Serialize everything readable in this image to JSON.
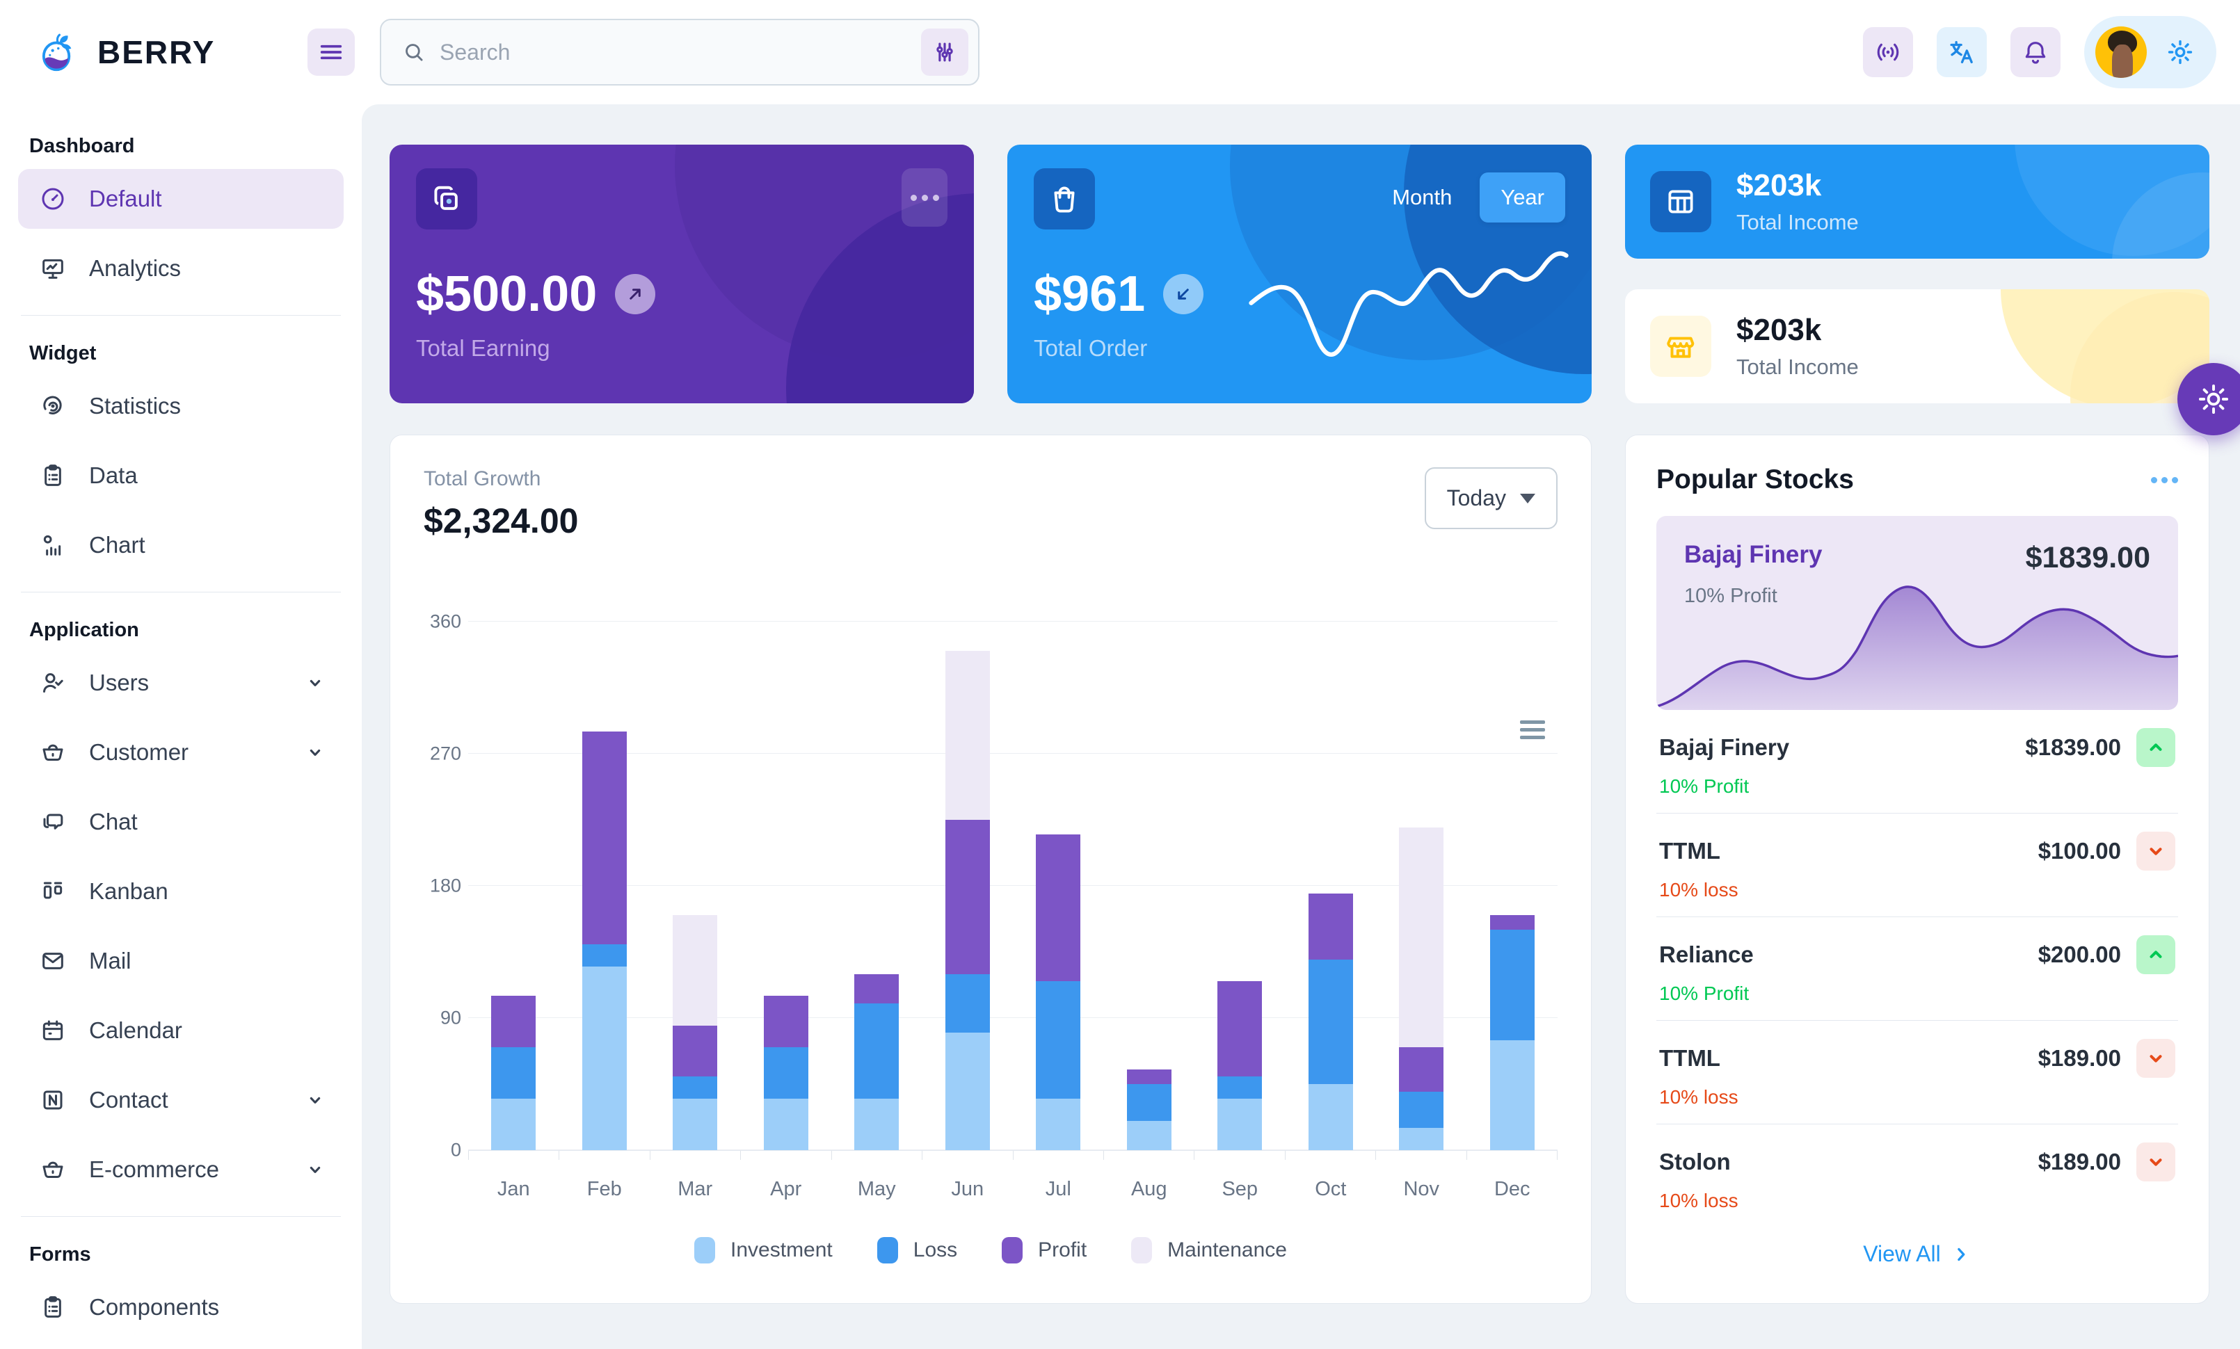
{
  "brand": {
    "name": "BERRY"
  },
  "header": {
    "search": {
      "placeholder": "Search"
    }
  },
  "sidebar": {
    "sections": [
      {
        "title": "Dashboard",
        "items": [
          {
            "label": "Default",
            "icon": "gauge",
            "active": true
          },
          {
            "label": "Analytics",
            "icon": "monitor"
          }
        ]
      },
      {
        "title": "Widget",
        "items": [
          {
            "label": "Statistics",
            "icon": "statistics"
          },
          {
            "label": "Data",
            "icon": "clipboard"
          },
          {
            "label": "Chart",
            "icon": "chart"
          }
        ]
      },
      {
        "title": "Application",
        "items": [
          {
            "label": "Users",
            "icon": "user-check",
            "expandable": true
          },
          {
            "label": "Customer",
            "icon": "basket",
            "expandable": true
          },
          {
            "label": "Chat",
            "icon": "chat"
          },
          {
            "label": "Kanban",
            "icon": "kanban"
          },
          {
            "label": "Mail",
            "icon": "mail"
          },
          {
            "label": "Calendar",
            "icon": "calendar"
          },
          {
            "label": "Contact",
            "icon": "contact",
            "expandable": true
          },
          {
            "label": "E-commerce",
            "icon": "basket",
            "expandable": true
          }
        ]
      },
      {
        "title": "Forms",
        "items": [
          {
            "label": "Components",
            "icon": "clipboard"
          }
        ]
      }
    ]
  },
  "cards": {
    "earning": {
      "value": "$500.00",
      "label": "Total Earning"
    },
    "order": {
      "value": "$961",
      "label": "Total Order",
      "toggle": [
        {
          "label": "Month"
        },
        {
          "label": "Year"
        }
      ],
      "active_toggle": "Year"
    },
    "income_primary": {
      "value": "$203k",
      "label": "Total Income"
    },
    "income_warning": {
      "value": "$203k",
      "label": "Total Income"
    }
  },
  "growth": {
    "label": "Total Growth",
    "amount": "$2,324.00",
    "period": "Today"
  },
  "chart_data": {
    "type": "bar",
    "stacked": true,
    "title": "Total Growth",
    "categories": [
      "Jan",
      "Feb",
      "Mar",
      "Apr",
      "May",
      "Jun",
      "Jul",
      "Aug",
      "Sep",
      "Oct",
      "Nov",
      "Dec"
    ],
    "series": [
      {
        "name": "Investment",
        "color": "#9CCEF9",
        "values": [
          35,
          125,
          35,
          35,
          35,
          80,
          35,
          20,
          35,
          45,
          15,
          75
        ]
      },
      {
        "name": "Loss",
        "color": "#3D97EE",
        "values": [
          35,
          15,
          15,
          35,
          65,
          40,
          80,
          25,
          15,
          85,
          25,
          75
        ]
      },
      {
        "name": "Profit",
        "color": "#7C55C6",
        "values": [
          35,
          145,
          35,
          35,
          20,
          105,
          100,
          10,
          65,
          45,
          30,
          10
        ]
      },
      {
        "name": "Maintenance",
        "color": "#EDE9F6",
        "values": [
          0,
          0,
          75,
          0,
          0,
          115,
          0,
          0,
          0,
          0,
          150,
          0
        ]
      }
    ],
    "ylim": [
      0,
      360
    ],
    "yticks": [
      0,
      90,
      180,
      270,
      360
    ],
    "grid": true,
    "legend_position": "bottom"
  },
  "stocks": {
    "title": "Popular Stocks",
    "featured": {
      "name": "Bajaj Finery",
      "price": "$1839.00",
      "change": "10% Profit"
    },
    "items": [
      {
        "name": "Bajaj Finery",
        "price": "$1839.00",
        "change": "10% Profit",
        "direction": "up"
      },
      {
        "name": "TTML",
        "price": "$100.00",
        "change": "10% loss",
        "direction": "down"
      },
      {
        "name": "Reliance",
        "price": "$200.00",
        "change": "10% Profit",
        "direction": "up"
      },
      {
        "name": "TTML",
        "price": "$189.00",
        "change": "10% loss",
        "direction": "down"
      },
      {
        "name": "Stolon",
        "price": "$189.00",
        "change": "10% loss",
        "direction": "down"
      }
    ],
    "view_all": "View All"
  },
  "colors": {
    "secondary": "#5e35b1",
    "secondary_dark": "#4527a0",
    "secondary_light": "#ede7f6",
    "primary": "#2196f3",
    "primary_dark": "#1565c0",
    "primary_light": "#e3f2fd",
    "success": "#00c853",
    "success_light": "#b9f6ca",
    "error": "#e64a19",
    "error_light": "#fbe9e7",
    "warning": "#ffc107",
    "warning_light": "#fff8e1",
    "content_bg": "#eef2f6"
  }
}
